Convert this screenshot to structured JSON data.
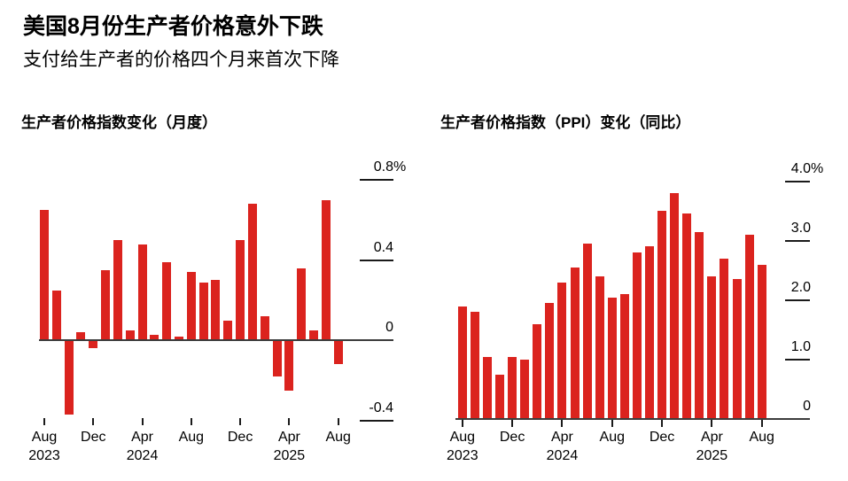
{
  "header": {
    "title": "美国8月份生产者价格意外下跌",
    "subtitle": "支付给生产者的价格四个月来首次下降"
  },
  "colors": {
    "bar_red": "#db231e",
    "axis_line": "#3c3c3c",
    "tick_rule": "#1a1a1a",
    "text": "#000000",
    "background": "#ffffff"
  },
  "chart_data": [
    {
      "type": "bar",
      "title": "生产者价格指数变化（月度）",
      "unit": "%",
      "ylim": [
        -0.4,
        0.8
      ],
      "grid": "right-stub-ticks",
      "legend": "none",
      "categories": [
        "Aug 2023",
        "Sep 2023",
        "Oct 2023",
        "Nov 2023",
        "Dec 2023",
        "Jan 2024",
        "Feb 2024",
        "Mar 2024",
        "Apr 2024",
        "May 2024",
        "Jun 2024",
        "Jul 2024",
        "Aug 2024",
        "Sep 2024",
        "Oct 2024",
        "Nov 2024",
        "Dec 2024",
        "Jan 2025",
        "Feb 2025",
        "Mar 2025",
        "Apr 2025",
        "May 2025",
        "Jun 2025",
        "Jul 2025",
        "Aug 2025"
      ],
      "values": [
        0.65,
        0.25,
        -0.37,
        0.04,
        -0.04,
        0.35,
        0.5,
        0.05,
        0.48,
        0.03,
        0.39,
        0.02,
        0.34,
        0.29,
        0.3,
        0.1,
        0.5,
        0.68,
        0.12,
        -0.18,
        -0.25,
        0.36,
        0.05,
        0.7,
        -0.12
      ],
      "yticks": [
        {
          "value": 0.8,
          "label": "0.8%"
        },
        {
          "value": 0.4,
          "label": "0.4"
        },
        {
          "value": 0,
          "label": "0"
        },
        {
          "value": -0.4,
          "label": "-0.4"
        }
      ],
      "xticks": [
        {
          "index": 0,
          "month": "Aug",
          "year": "2023"
        },
        {
          "index": 4,
          "month": "Dec"
        },
        {
          "index": 8,
          "month": "Apr",
          "year": "2024"
        },
        {
          "index": 12,
          "month": "Aug"
        },
        {
          "index": 16,
          "month": "Dec"
        },
        {
          "index": 20,
          "month": "Apr",
          "year": "2025"
        },
        {
          "index": 24,
          "month": "Aug"
        }
      ]
    },
    {
      "type": "bar",
      "title": "生产者价格指数（PPI）变化（同比）",
      "unit": "%",
      "ylim": [
        0,
        4.0
      ],
      "grid": "right-stub-ticks",
      "legend": "none",
      "categories": [
        "Aug 2023",
        "Sep 2023",
        "Oct 2023",
        "Nov 2023",
        "Dec 2023",
        "Jan 2024",
        "Feb 2024",
        "Mar 2024",
        "Apr 2024",
        "May 2024",
        "Jun 2024",
        "Jul 2024",
        "Aug 2024",
        "Sep 2024",
        "Oct 2024",
        "Nov 2024",
        "Dec 2024",
        "Jan 2025",
        "Feb 2025",
        "Mar 2025",
        "Apr 2025",
        "May 2025",
        "Jun 2025",
        "Jul 2025",
        "Aug 2025"
      ],
      "values": [
        1.9,
        1.8,
        1.05,
        0.75,
        1.05,
        1.0,
        1.6,
        1.95,
        2.3,
        2.55,
        2.95,
        2.4,
        2.05,
        2.1,
        2.8,
        2.9,
        3.5,
        3.8,
        3.45,
        3.15,
        2.4,
        2.7,
        2.35,
        3.1,
        2.6
      ],
      "yticks": [
        {
          "value": 4.0,
          "label": "4.0%"
        },
        {
          "value": 3.0,
          "label": "3.0"
        },
        {
          "value": 2.0,
          "label": "2.0"
        },
        {
          "value": 1.0,
          "label": "1.0"
        },
        {
          "value": 0,
          "label": "0"
        }
      ],
      "xticks": [
        {
          "index": 0,
          "month": "Aug",
          "year": "2023"
        },
        {
          "index": 4,
          "month": "Dec"
        },
        {
          "index": 8,
          "month": "Apr",
          "year": "2024"
        },
        {
          "index": 12,
          "month": "Aug"
        },
        {
          "index": 16,
          "month": "Dec"
        },
        {
          "index": 20,
          "month": "Apr",
          "year": "2025"
        },
        {
          "index": 24,
          "month": "Aug"
        }
      ]
    }
  ]
}
